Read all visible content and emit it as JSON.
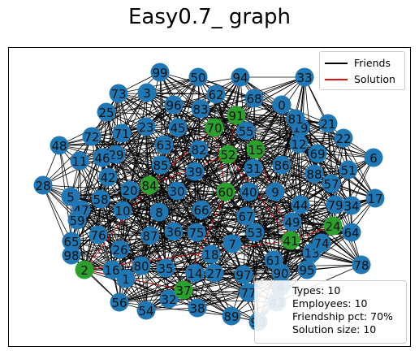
{
  "title": "Easy0.7_ graph",
  "legend": {
    "items": [
      {
        "label": "Friends",
        "color": "#000000"
      },
      {
        "label": "Solution",
        "color": "#dd1111"
      }
    ]
  },
  "info": {
    "types": "Types: 10",
    "employees": "Employees: 10",
    "friendship": "Friendship pct: 70%",
    "solution_size": "Solution size: 10"
  },
  "colors": {
    "node_default": "#1f77b4",
    "node_solution": "#2ca02c",
    "edge": "#000000",
    "solution_edge": "#dd1111"
  },
  "nodes": [
    {
      "id": "0"
    },
    {
      "id": "1"
    },
    {
      "id": "2",
      "solution": true
    },
    {
      "id": "3"
    },
    {
      "id": "4"
    },
    {
      "id": "5"
    },
    {
      "id": "6"
    },
    {
      "id": "7"
    },
    {
      "id": "8"
    },
    {
      "id": "9"
    },
    {
      "id": "10"
    },
    {
      "id": "11"
    },
    {
      "id": "12"
    },
    {
      "id": "13"
    },
    {
      "id": "14"
    },
    {
      "id": "15",
      "solution": true
    },
    {
      "id": "16"
    },
    {
      "id": "17"
    },
    {
      "id": "18"
    },
    {
      "id": "19"
    },
    {
      "id": "20"
    },
    {
      "id": "21"
    },
    {
      "id": "22"
    },
    {
      "id": "23"
    },
    {
      "id": "24",
      "solution": true
    },
    {
      "id": "25"
    },
    {
      "id": "26"
    },
    {
      "id": "27"
    },
    {
      "id": "28"
    },
    {
      "id": "29"
    },
    {
      "id": "30"
    },
    {
      "id": "31"
    },
    {
      "id": "32"
    },
    {
      "id": "33"
    },
    {
      "id": "34"
    },
    {
      "id": "35"
    },
    {
      "id": "36"
    },
    {
      "id": "37",
      "solution": true
    },
    {
      "id": "38"
    },
    {
      "id": "39"
    },
    {
      "id": "40"
    },
    {
      "id": "41",
      "solution": true
    },
    {
      "id": "42"
    },
    {
      "id": "43"
    },
    {
      "id": "44"
    },
    {
      "id": "45"
    },
    {
      "id": "46"
    },
    {
      "id": "47"
    },
    {
      "id": "48"
    },
    {
      "id": "49"
    },
    {
      "id": "50"
    },
    {
      "id": "51"
    },
    {
      "id": "52",
      "solution": true
    },
    {
      "id": "53"
    },
    {
      "id": "54"
    },
    {
      "id": "55"
    },
    {
      "id": "56"
    },
    {
      "id": "57"
    },
    {
      "id": "58"
    },
    {
      "id": "59"
    },
    {
      "id": "60",
      "solution": true
    },
    {
      "id": "61"
    },
    {
      "id": "62"
    },
    {
      "id": "63"
    },
    {
      "id": "64"
    },
    {
      "id": "65"
    },
    {
      "id": "66"
    },
    {
      "id": "67"
    },
    {
      "id": "68"
    },
    {
      "id": "69"
    },
    {
      "id": "70",
      "solution": true
    },
    {
      "id": "71"
    },
    {
      "id": "72"
    },
    {
      "id": "73"
    },
    {
      "id": "74"
    },
    {
      "id": "75"
    },
    {
      "id": "76"
    },
    {
      "id": "77"
    },
    {
      "id": "78"
    },
    {
      "id": "79"
    },
    {
      "id": "80"
    },
    {
      "id": "81"
    },
    {
      "id": "82"
    },
    {
      "id": "83"
    },
    {
      "id": "84",
      "solution": true
    },
    {
      "id": "85"
    },
    {
      "id": "86"
    },
    {
      "id": "87"
    },
    {
      "id": "88"
    },
    {
      "id": "89"
    },
    {
      "id": "90"
    },
    {
      "id": "91",
      "solution": true
    },
    {
      "id": "93"
    },
    {
      "id": "94"
    },
    {
      "id": "95"
    },
    {
      "id": "96"
    },
    {
      "id": "97"
    },
    {
      "id": "98"
    },
    {
      "id": "99"
    }
  ],
  "solution_edges": [
    [
      "2",
      "37"
    ],
    [
      "2",
      "41"
    ],
    [
      "2",
      "84"
    ],
    [
      "84",
      "52"
    ],
    [
      "52",
      "91"
    ],
    [
      "91",
      "15"
    ],
    [
      "15",
      "41"
    ],
    [
      "41",
      "24"
    ],
    [
      "70",
      "60"
    ],
    [
      "60",
      "37"
    ],
    [
      "52",
      "41"
    ],
    [
      "70",
      "84"
    ]
  ]
}
